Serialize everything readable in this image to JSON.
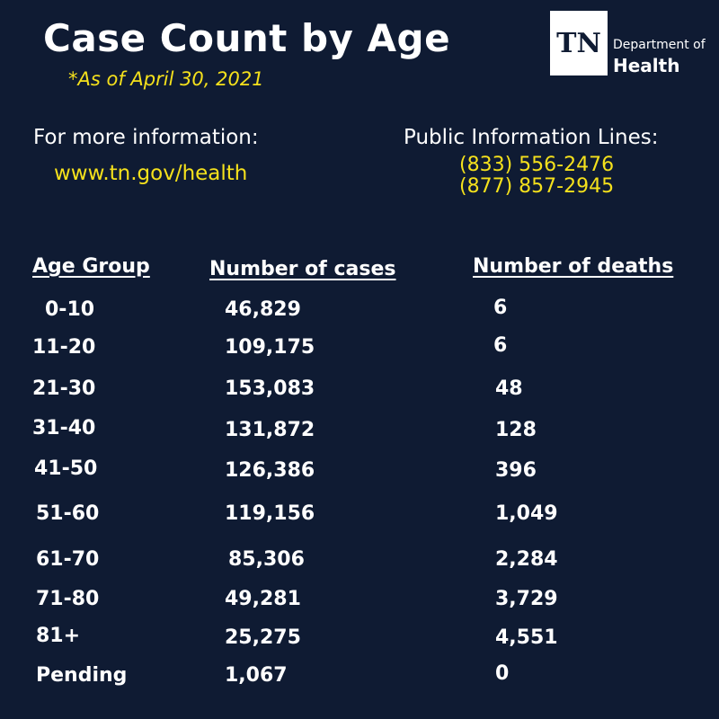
{
  "header": {
    "title": "Case Count by Age",
    "as_of": "*As of April 30, 2021"
  },
  "logo": {
    "mark": "TN",
    "department": "Department of",
    "health": "Health"
  },
  "info": {
    "label": "For more information:",
    "link": "www.tn.gov/health"
  },
  "public_lines": {
    "label": "Public Information Lines:",
    "phones": [
      "(833) 556-2476",
      "(877) 857-2945"
    ]
  },
  "table": {
    "columns": [
      "Age Group",
      "Number of cases",
      "Number of deaths"
    ],
    "rows": [
      {
        "age": "0-10",
        "cases": "46,829",
        "deaths": "6"
      },
      {
        "age": "11-20",
        "cases": "109,175",
        "deaths": "6"
      },
      {
        "age": "21-30",
        "cases": "153,083",
        "deaths": "48"
      },
      {
        "age": "31-40",
        "cases": "131,872",
        "deaths": "128"
      },
      {
        "age": "41-50",
        "cases": "126,386",
        "deaths": "396"
      },
      {
        "age": "51-60",
        "cases": "119,156",
        "deaths": "1,049"
      },
      {
        "age": "61-70",
        "cases": "85,306",
        "deaths": "2,284"
      },
      {
        "age": "71-80",
        "cases": "49,281",
        "deaths": "3,729"
      },
      {
        "age": "81+",
        "cases": "25,275",
        "deaths": "4,551"
      },
      {
        "age": "Pending",
        "cases": "1,067",
        "deaths": "0"
      }
    ]
  },
  "colors": {
    "background": "#0f1b33",
    "accent": "#f5e11c",
    "text": "#ffffff"
  }
}
